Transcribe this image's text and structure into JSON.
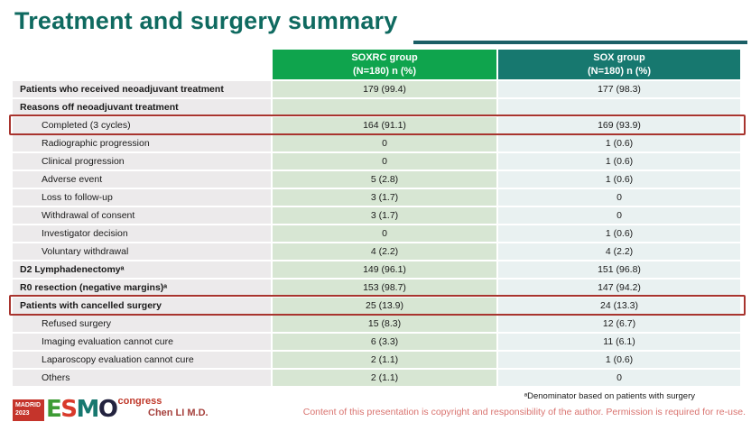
{
  "slide": {
    "title": "Treatment and surgery summary"
  },
  "table": {
    "header": {
      "soxrc": {
        "line1": "SOXRC group",
        "line2": "(N=180)  n (%)"
      },
      "sox": {
        "line1": "SOX group",
        "line2": "(N=180)  n (%)"
      }
    },
    "rows": [
      {
        "label": "Patients who received neoadjuvant treatment",
        "soxrc": "179 (99.4)",
        "sox": "177 (98.3)",
        "bold": true,
        "indent": false,
        "highlight": false
      },
      {
        "label": "Reasons off neoadjuvant treatment",
        "soxrc": "",
        "sox": "",
        "bold": true,
        "indent": false,
        "highlight": false
      },
      {
        "label": "Completed (3 cycles)",
        "soxrc": "164 (91.1)",
        "sox": "169 (93.9)",
        "bold": false,
        "indent": true,
        "highlight": true
      },
      {
        "label": "Radiographic progression",
        "soxrc": "0",
        "sox": "1 (0.6)",
        "bold": false,
        "indent": true,
        "highlight": false
      },
      {
        "label": "Clinical progression",
        "soxrc": "0",
        "sox": "1 (0.6)",
        "bold": false,
        "indent": true,
        "highlight": false
      },
      {
        "label": "Adverse event",
        "soxrc": "5 (2.8)",
        "sox": "1 (0.6)",
        "bold": false,
        "indent": true,
        "highlight": false
      },
      {
        "label": "Loss to follow-up",
        "soxrc": "3 (1.7)",
        "sox": "0",
        "bold": false,
        "indent": true,
        "highlight": false
      },
      {
        "label": "Withdrawal of consent",
        "soxrc": "3 (1.7)",
        "sox": "0",
        "bold": false,
        "indent": true,
        "highlight": false
      },
      {
        "label": "Investigator decision",
        "soxrc": "0",
        "sox": "1 (0.6)",
        "bold": false,
        "indent": true,
        "highlight": false
      },
      {
        "label": "Voluntary withdrawal",
        "soxrc": "4 (2.2)",
        "sox": "4 (2.2)",
        "bold": false,
        "indent": true,
        "highlight": false
      },
      {
        "label": "D2 Lymphadenectomyᵃ",
        "soxrc": "149 (96.1)",
        "sox": "151 (96.8)",
        "bold": true,
        "indent": false,
        "highlight": false
      },
      {
        "label": "R0 resection (negative margins)ᵃ",
        "soxrc": "153 (98.7)",
        "sox": "147 (94.2)",
        "bold": true,
        "indent": false,
        "highlight": false
      },
      {
        "label": "Patients with cancelled surgery",
        "soxrc": "25 (13.9)",
        "sox": "24 (13.3)",
        "bold": true,
        "indent": false,
        "highlight": true
      },
      {
        "label": "Refused surgery",
        "soxrc": "15 (8.3)",
        "sox": "12 (6.7)",
        "bold": false,
        "indent": true,
        "highlight": false
      },
      {
        "label": "Imaging evaluation cannot cure",
        "soxrc": "6 (3.3)",
        "sox": "11 (6.1)",
        "bold": false,
        "indent": true,
        "highlight": false
      },
      {
        "label": "Laparoscopy evaluation cannot cure",
        "soxrc": "2 (1.1)",
        "sox": "1 (0.6)",
        "bold": false,
        "indent": true,
        "highlight": false
      },
      {
        "label": "Others",
        "soxrc": "2 (1.1)",
        "sox": "0",
        "bold": false,
        "indent": true,
        "highlight": false
      }
    ]
  },
  "footer": {
    "logo": {
      "city": "MADRID",
      "year": "2023",
      "letters": [
        "E",
        "S",
        "M",
        "O"
      ],
      "congress": "congress"
    },
    "presenter": "Chen LI M.D.",
    "footnote": "ᵃDenominator based on patients with surgery",
    "copyright": "Content of this presentation is copyright and responsibility of the author. Permission is required for re-use."
  },
  "colors": {
    "title": "#0F6A60",
    "title_rule": "#1B5F66",
    "header_soxrc_bg": "#0FA44D",
    "header_sox_bg": "#17786F",
    "label_col_bg": "#ECEAEB",
    "soxrc_col_bg": "#D7E6D3",
    "sox_col_bg": "#E9F1F1",
    "highlight_border": "#A8342E",
    "presenter": "#A5403C",
    "copyright": "#D9736F",
    "logo_red": "#C5342B"
  }
}
